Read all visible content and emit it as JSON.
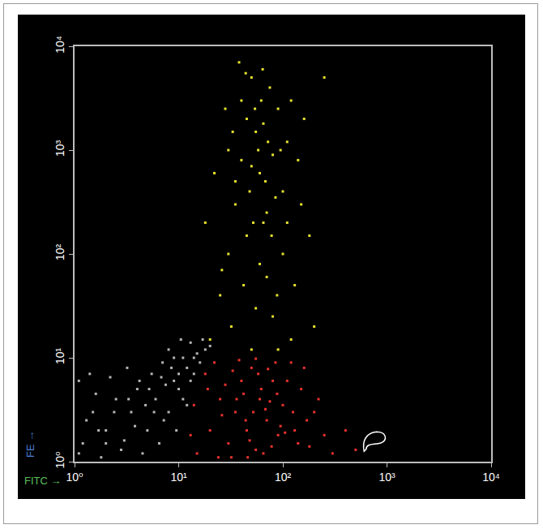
{
  "chart_data": {
    "type": "scatter",
    "x_label": "FITC →",
    "y_label": "FE →",
    "log": true,
    "grid": false,
    "marker": "dot",
    "xlim": [
      1,
      10000
    ],
    "ylim": [
      1,
      10000
    ],
    "xticks": [
      {
        "value": 1,
        "label": "10⁰"
      },
      {
        "value": 10,
        "label": "10¹"
      },
      {
        "value": 100,
        "label": "10²"
      },
      {
        "value": 1000,
        "label": "10³"
      },
      {
        "value": 10000,
        "label": "10⁴"
      }
    ],
    "yticks": [
      {
        "value": 1,
        "label": "10⁰"
      },
      {
        "value": 10,
        "label": "10¹"
      },
      {
        "value": 100,
        "label": "10²"
      },
      {
        "value": 1000,
        "label": "10³"
      },
      {
        "value": 10000,
        "label": "10⁴"
      }
    ],
    "series": [
      {
        "color": "#b4b4b4",
        "x": [
          1.2,
          1.5,
          1.1,
          2,
          2.5,
          1.8,
          3,
          3.5,
          2.2,
          4,
          5,
          5.5,
          6,
          7,
          8,
          8,
          9,
          10,
          11,
          12,
          13,
          14,
          15,
          1.3,
          1.6,
          2.8,
          3.2,
          4.5,
          4.8,
          6.5,
          7.5,
          9.5,
          10.5,
          12,
          16,
          18,
          2,
          1.4,
          3.8,
          5.2,
          6.8,
          8.5,
          11,
          13,
          20,
          1.1,
          1.7,
          2.4,
          3.3,
          4.2,
          5.8,
          7.2,
          9,
          10,
          14,
          17
        ],
        "y": [
          1.5,
          3,
          6,
          2,
          4,
          1.1,
          1.6,
          3,
          6.5,
          5,
          2,
          7,
          4,
          9,
          3,
          12,
          6,
          5,
          10,
          8,
          14,
          7,
          11,
          2.5,
          4.5,
          1.3,
          8,
          1.2,
          3.5,
          1.5,
          5.5,
          2,
          15,
          3.5,
          9,
          12,
          1.5,
          7,
          2.2,
          5,
          6.5,
          8,
          4,
          6,
          13,
          1.2,
          2,
          3,
          4,
          6,
          3,
          2.5,
          10,
          7,
          10,
          15
        ]
      },
      {
        "color": "#e8322c",
        "x": [
          15,
          20,
          25,
          30,
          35,
          40,
          45,
          50,
          55,
          60,
          70,
          80,
          90,
          100,
          120,
          130,
          150,
          180,
          200,
          250,
          300,
          14,
          18,
          22,
          28,
          32,
          38,
          42,
          48,
          52,
          58,
          65,
          75,
          85,
          95,
          110,
          140,
          160,
          220,
          400,
          26,
          33,
          44,
          62,
          78,
          105,
          13,
          24,
          36,
          55,
          68,
          88,
          125,
          170,
          500,
          19,
          46,
          72
        ],
        "y": [
          1.2,
          2,
          4,
          1.5,
          3,
          6,
          2,
          8,
          1.3,
          4,
          2.5,
          6,
          1.8,
          3.5,
          9,
          2,
          5,
          1.4,
          3,
          1.8,
          1.2,
          3.5,
          7,
          9,
          5.5,
          1.1,
          9.5,
          4.5,
          1.6,
          3,
          7,
          1.2,
          3.8,
          9,
          2.2,
          6,
          1.5,
          8,
          4,
          2,
          2.8,
          7.5,
          2.5,
          5,
          1.4,
          1.9,
          1.8,
          1.1,
          4,
          9.8,
          3.2,
          4.5,
          3,
          2.5,
          1.3,
          5,
          1.1,
          7.8
        ]
      },
      {
        "color": "#e6e22e",
        "x": [
          20,
          25,
          30,
          35,
          40,
          45,
          50,
          55,
          60,
          65,
          70,
          80,
          90,
          100,
          110,
          120,
          30,
          40,
          50,
          55,
          60,
          70,
          80,
          90,
          100,
          130,
          150,
          200,
          35,
          45,
          50,
          65,
          75,
          85,
          95,
          38,
          28,
          22,
          18,
          26,
          32,
          42,
          52,
          62,
          72,
          110,
          140,
          180,
          250,
          48,
          58,
          68,
          78,
          88,
          120,
          33,
          44,
          54,
          64,
          160
        ],
        "y": [
          15,
          40,
          100,
          300,
          800,
          2000,
          5000,
          1500,
          600,
          200,
          60,
          25,
          12,
          400,
          1200,
          3000,
          1000,
          3000,
          12,
          30,
          80,
          250,
          900,
          2500,
          100,
          50,
          300,
          20,
          500,
          150,
          700,
          1800,
          4000,
          350,
          1000,
          7000,
          2500,
          600,
          200,
          70,
          20,
          50,
          200,
          3000,
          1200,
          200,
          800,
          150,
          5000,
          400,
          1000,
          500,
          150,
          40,
          15,
          1500,
          5500,
          2500,
          6000,
          2000
        ]
      }
    ]
  }
}
